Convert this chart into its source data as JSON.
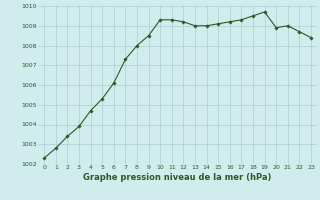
{
  "x": [
    0,
    1,
    2,
    3,
    4,
    5,
    6,
    7,
    8,
    9,
    10,
    11,
    12,
    13,
    14,
    15,
    16,
    17,
    18,
    19,
    20,
    21,
    22,
    23
  ],
  "y": [
    1002.3,
    1002.8,
    1003.4,
    1003.9,
    1004.7,
    1005.3,
    1006.1,
    1007.3,
    1008.0,
    1008.5,
    1009.3,
    1009.3,
    1009.2,
    1009.0,
    1009.0,
    1009.1,
    1009.2,
    1009.3,
    1009.5,
    1009.7,
    1008.9,
    1009.0,
    1008.7,
    1008.4
  ],
  "line_color": "#2d5a27",
  "marker": "D",
  "marker_size": 1.8,
  "line_width": 0.8,
  "xlabel": "Graphe pression niveau de la mer (hPa)",
  "xlabel_fontsize": 6.0,
  "xlabel_color": "#2d5a27",
  "ylim": [
    1002,
    1010
  ],
  "xlim_min": -0.5,
  "xlim_max": 23.5,
  "yticks": [
    1002,
    1003,
    1004,
    1005,
    1006,
    1007,
    1008,
    1009,
    1010
  ],
  "xticks": [
    0,
    1,
    2,
    3,
    4,
    5,
    6,
    7,
    8,
    9,
    10,
    11,
    12,
    13,
    14,
    15,
    16,
    17,
    18,
    19,
    20,
    21,
    22,
    23
  ],
  "grid_color": "#a8cece",
  "background_color": "#d0ecec",
  "tick_fontsize": 4.5,
  "tick_color": "#2d5a27"
}
